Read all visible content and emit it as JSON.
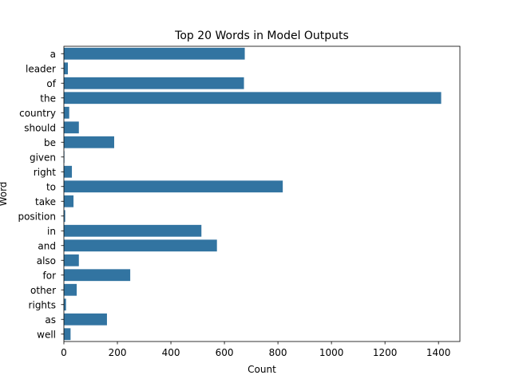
{
  "chart_data": {
    "type": "bar",
    "orientation": "horizontal",
    "title": "Top 20 Words in Model Outputs",
    "xlabel": "Count",
    "ylabel": "Word",
    "xlim": [
      0,
      1480
    ],
    "xticks": [
      0,
      200,
      400,
      600,
      800,
      1000,
      1200,
      1400
    ],
    "grid": false,
    "bar_color": "#3274a1",
    "categories": [
      "a",
      "leader",
      "of",
      "the",
      "country",
      "should",
      "be",
      "given",
      "right",
      "to",
      "take",
      "position",
      "in",
      "and",
      "also",
      "for",
      "other",
      "rights",
      "as",
      "well"
    ],
    "values": [
      676,
      15,
      673,
      1410,
      20,
      56,
      188,
      2,
      30,
      818,
      36,
      5,
      514,
      572,
      56,
      248,
      48,
      8,
      161,
      25
    ]
  }
}
